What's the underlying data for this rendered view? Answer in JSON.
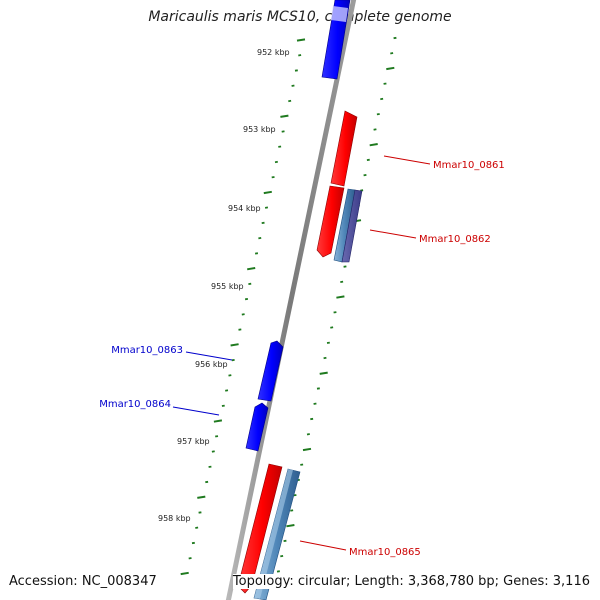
{
  "map": {
    "title": "Maricaulis maris MCS10, complete genome",
    "accession": "Accession: NC_008347",
    "topology": "Topology: circular; Length: 3,368,780 bp; Genes: 3,116",
    "colors": {
      "backbone": "#8c8c8c",
      "ruler_dash": "#1f7a1f",
      "forward_gene": "#ff0000",
      "reverse_gene": "#0000ff",
      "cds_feature": "#4f86b8",
      "forward_label": "#cc0000",
      "reverse_label": "#0000cc"
    },
    "ticks": [
      {
        "label": "952 kbp"
      },
      {
        "label": "953 kbp"
      },
      {
        "label": "954 kbp"
      },
      {
        "label": "955 kbp"
      },
      {
        "label": "956 kbp"
      },
      {
        "label": "957 kbp"
      },
      {
        "label": "958 kbp"
      }
    ],
    "gene_labels": [
      {
        "text": "Mmar10_0861",
        "strand": "forward"
      },
      {
        "text": "Mmar10_0862",
        "strand": "forward"
      },
      {
        "text": "Mmar10_0863",
        "strand": "reverse"
      },
      {
        "text": "Mmar10_0864",
        "strand": "reverse"
      },
      {
        "text": "Mmar10_0865",
        "strand": "forward"
      }
    ]
  }
}
